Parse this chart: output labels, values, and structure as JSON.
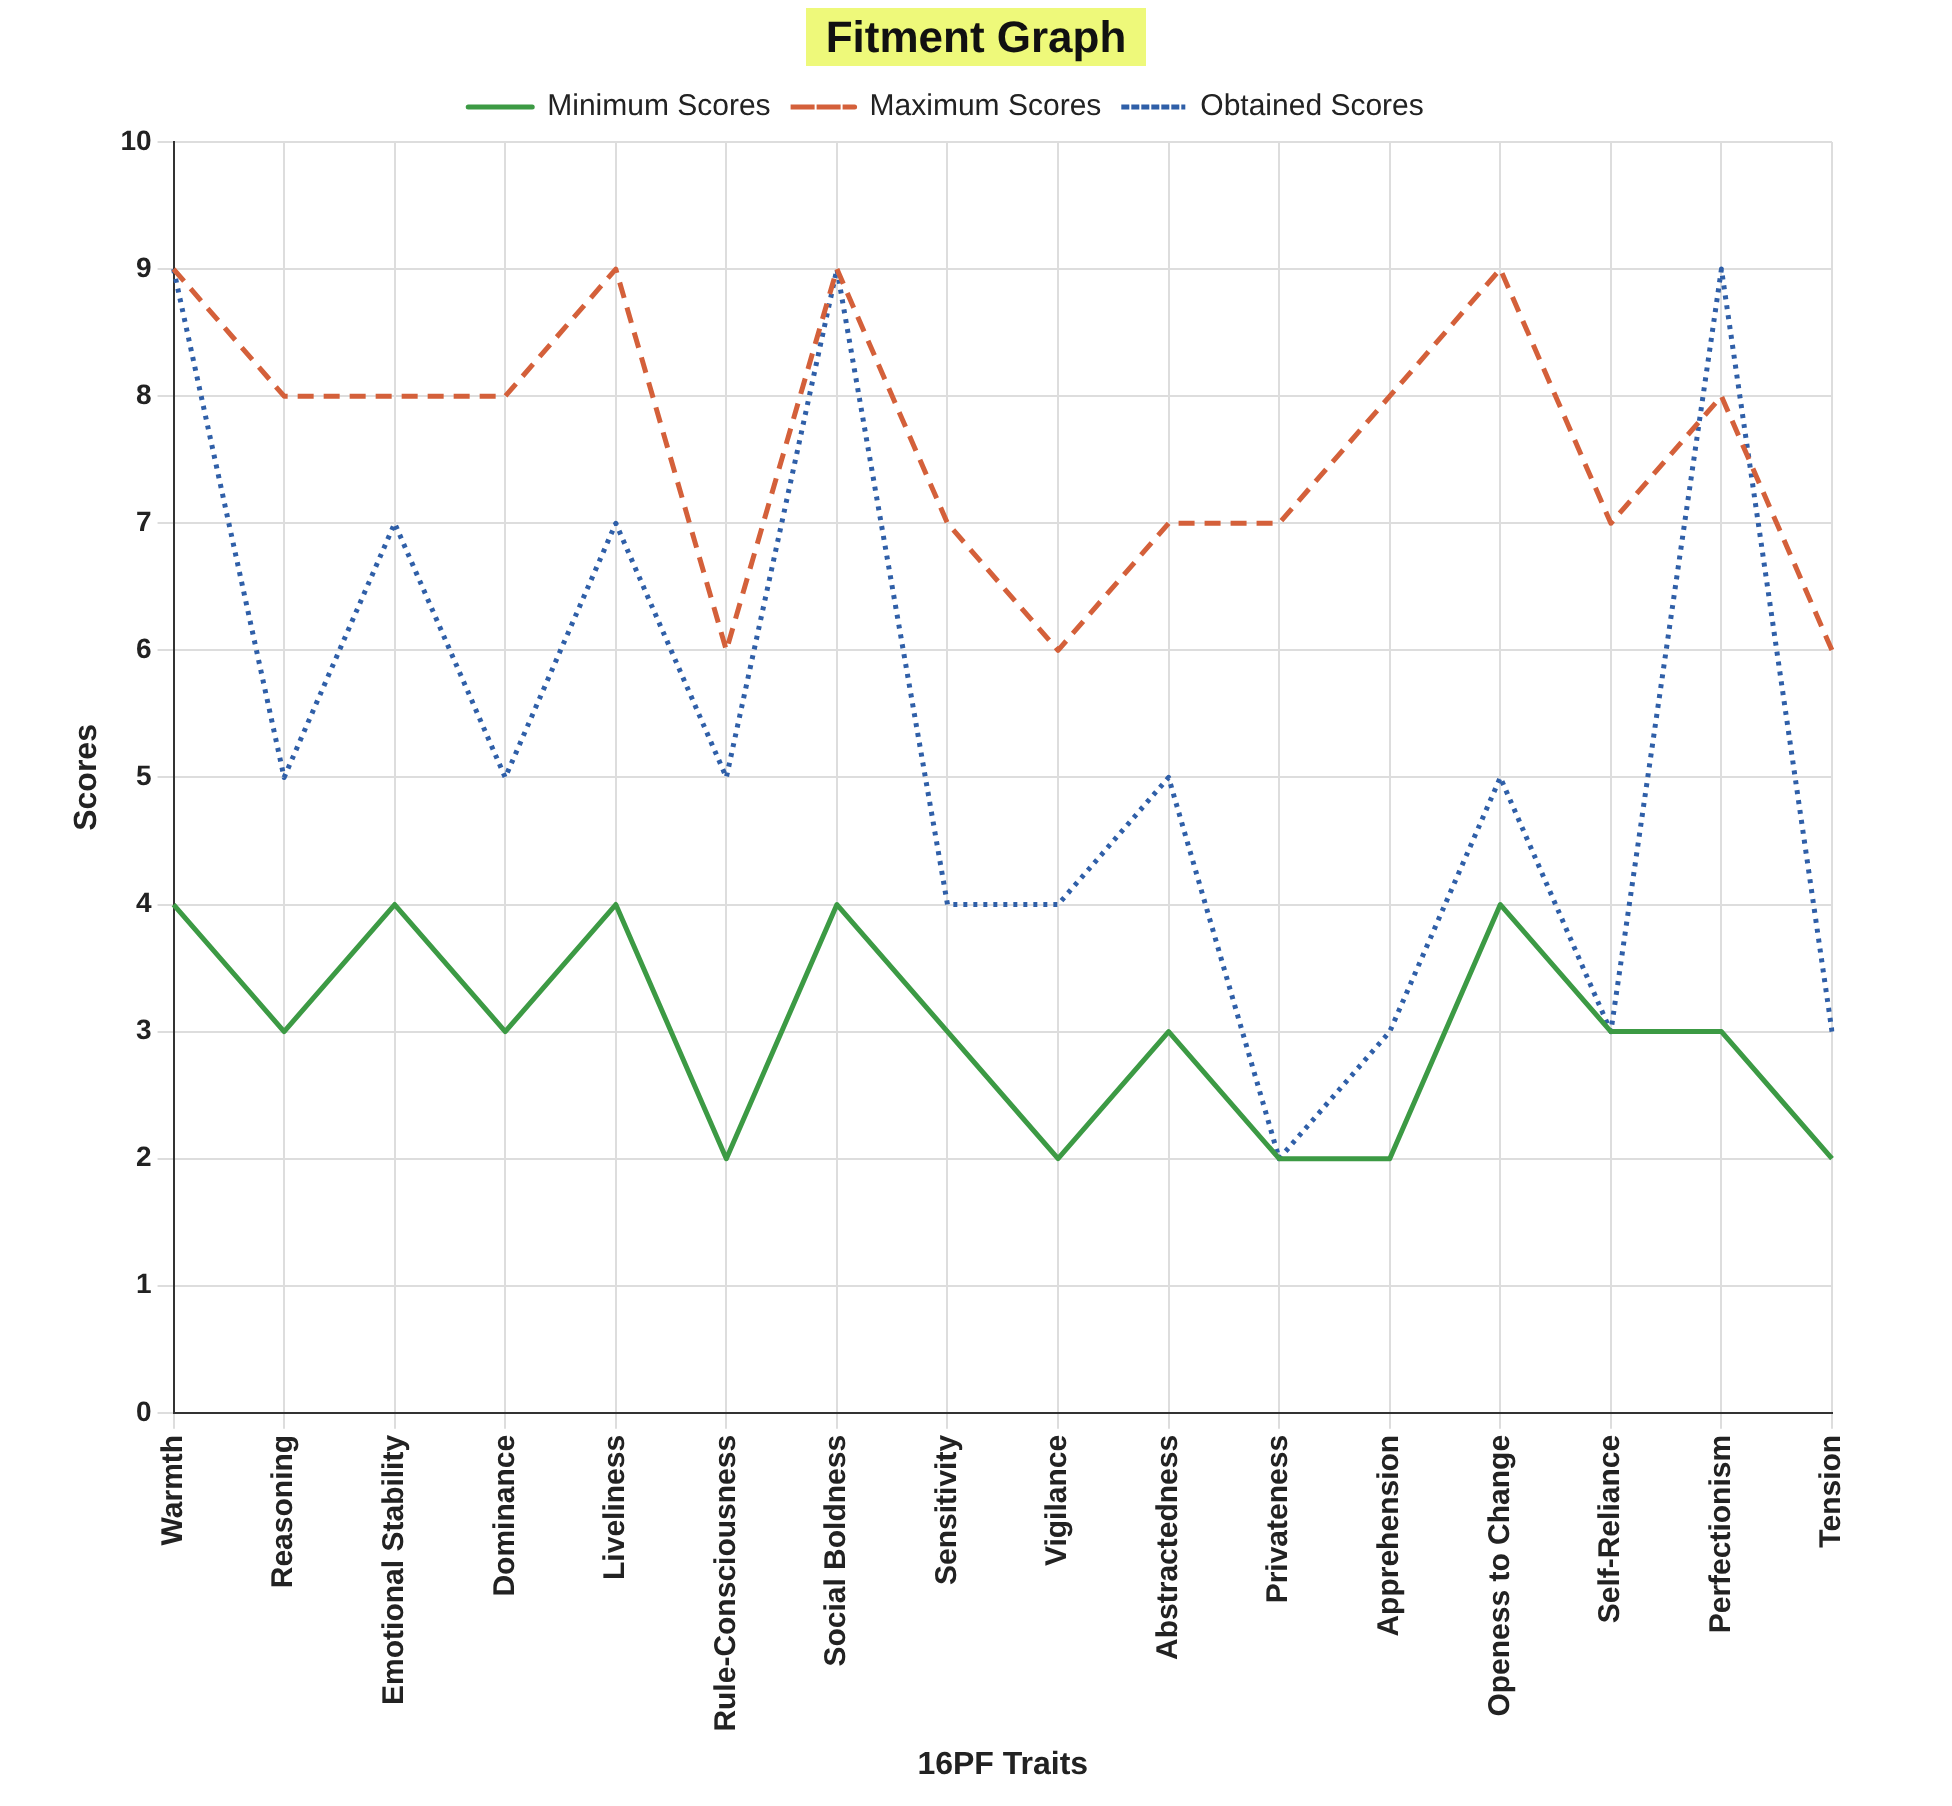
{
  "chart_data": {
    "type": "line",
    "title": "Fitment Graph",
    "xlabel": "16PF Traits",
    "ylabel": "Scores",
    "categories": [
      "Warmth",
      "Reasoning",
      "Emotional Stability",
      "Dominance",
      "Liveliness",
      "Rule-Consciousness",
      "Social Boldness",
      "Sensitivity",
      "Vigilance",
      "Abstractedness",
      "Privateness",
      "Apprehension",
      "Openess to Change",
      "Self-Reliance",
      "Perfectionism",
      "Tension"
    ],
    "series": [
      {
        "name": "Minimum Scores",
        "color": "#3c9a44",
        "line_style": "solid",
        "values": [
          4,
          3,
          4,
          3,
          4,
          2,
          4,
          3,
          2,
          3,
          2,
          2,
          4,
          3,
          3,
          2
        ]
      },
      {
        "name": "Maximum Scores",
        "color": "#d4603a",
        "line_style": "dashed",
        "values": [
          9,
          8,
          8,
          8,
          9,
          6,
          9,
          7,
          6,
          7,
          7,
          8,
          9,
          7,
          8,
          6
        ]
      },
      {
        "name": "Obtained Scores",
        "color": "#2f5fa8",
        "line_style": "dotted",
        "values": [
          9,
          5,
          7,
          5,
          7,
          5,
          9,
          4,
          4,
          5,
          2,
          3,
          5,
          3,
          9,
          3
        ]
      }
    ],
    "ylim": [
      0,
      10
    ],
    "yticks": [
      0,
      1,
      2,
      3,
      4,
      5,
      6,
      7,
      8,
      9,
      10
    ],
    "grid": true,
    "legend": "top",
    "marker": "none"
  }
}
